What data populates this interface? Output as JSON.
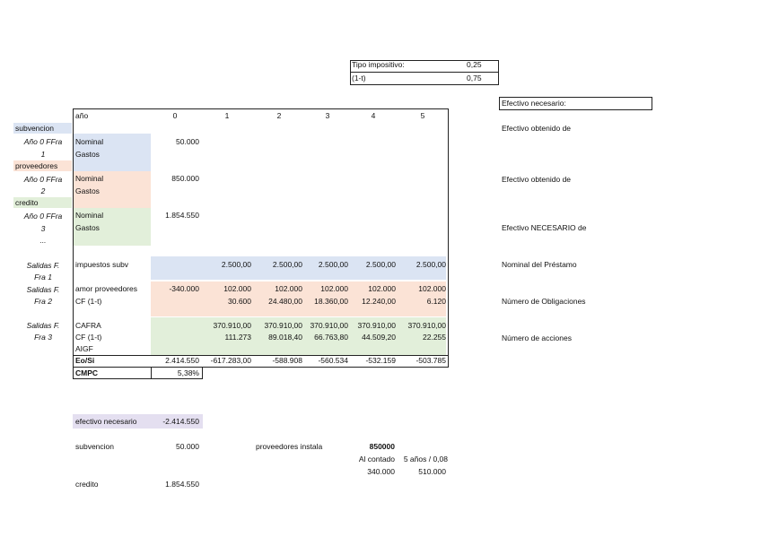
{
  "parameters": [
    [
      "Tipo impositivo:",
      "0,25"
    ],
    [
      "(1-t)",
      "0,75"
    ]
  ],
  "efectivo_box": "Efectivo necesario:",
  "right_notes": [
    "Efectivo obtenido de",
    "Efectivo obtenido de",
    "Efectivo NECESARIO de",
    "Nominal del Préstamo",
    "Número de Obligaciones",
    "Número de acciones"
  ],
  "side_labels": [
    "subvencion",
    "Año 0 FFra",
    "1",
    "proveedores",
    "Año 0 FFra",
    "2",
    "credito",
    "Año 0 FFra",
    "3",
    "...",
    "Salidas F.",
    "Fra 1",
    "Salidas F.",
    "Fra 2",
    "Salidas F.",
    "Fra 3"
  ],
  "table": {
    "header": [
      "año",
      "0",
      "1",
      "2",
      "3",
      "4",
      "5"
    ],
    "rows": [
      {
        "label": "Nominal",
        "values": [
          "50.000",
          null,
          null,
          null,
          null,
          null
        ]
      },
      {
        "label": "Gastos",
        "values": [
          null,
          null,
          null,
          null,
          null,
          null
        ]
      },
      {
        "label": "Nominal",
        "values": [
          "850.000",
          null,
          null,
          null,
          null,
          null
        ]
      },
      {
        "label": "Gastos",
        "values": [
          null,
          null,
          null,
          null,
          null,
          null
        ]
      },
      {
        "label": "Nominal",
        "values": [
          "1.854.550",
          null,
          null,
          null,
          null,
          null
        ]
      },
      {
        "label": "Gastos",
        "values": [
          null,
          null,
          null,
          null,
          null,
          null
        ]
      },
      {
        "label": "impuestos subv",
        "values": [
          null,
          "2.500,00",
          "2.500,00",
          "2.500,00",
          "2.500,00",
          "2.500,00"
        ]
      },
      {
        "label": "amor proveedores",
        "values": [
          "-340.000",
          "102.000",
          "102.000",
          "102.000",
          "102.000",
          "102.000"
        ]
      },
      {
        "label": "CF (1-t)",
        "values": [
          null,
          "30.600",
          "24.480,00",
          "18.360,00",
          "12.240,00",
          "6.120"
        ]
      },
      {
        "label": "CAFRA",
        "values": [
          null,
          "370.910,00",
          "370.910,00",
          "370.910,00",
          "370.910,00",
          "370.910,00"
        ]
      },
      {
        "label": "CF (1-t)",
        "values": [
          null,
          "111.273",
          "89.018,40",
          "66.763,80",
          "44.509,20",
          "22.255"
        ]
      },
      {
        "label": "AIGF",
        "values": [
          null,
          null,
          null,
          null,
          null,
          null
        ]
      },
      {
        "label": "Eo/Si",
        "values": [
          "2.414.550",
          "-617.283,00",
          "-588.908",
          "-560.534",
          "-532.159",
          "-503.785"
        ]
      },
      {
        "label": "CMPC",
        "values": [
          "5,38%",
          null,
          null,
          null,
          null,
          null
        ]
      }
    ]
  },
  "bottom": {
    "efectivo_necesario": [
      "efectivo necesario",
      "-2.414.550"
    ],
    "subvencion": [
      "subvencion",
      "50.000"
    ],
    "proveedores": [
      "proveedores instala",
      "850000"
    ],
    "pago_labels": [
      "Al contado",
      "5 años / 0,08"
    ],
    "pago_values": [
      "340.000",
      "510.000"
    ],
    "credito": [
      "credito",
      "1.854.550"
    ]
  }
}
